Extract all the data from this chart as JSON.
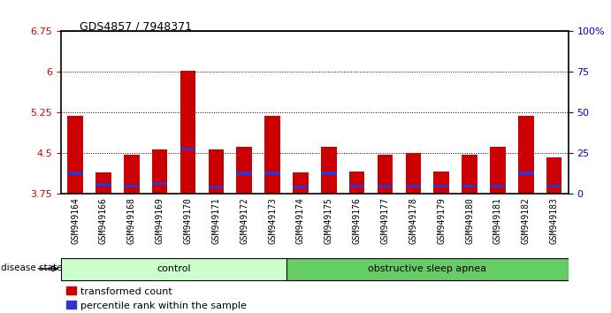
{
  "title": "GDS4857 / 7948371",
  "samples": [
    "GSM949164",
    "GSM949166",
    "GSM949168",
    "GSM949169",
    "GSM949170",
    "GSM949171",
    "GSM949172",
    "GSM949173",
    "GSM949174",
    "GSM949175",
    "GSM949176",
    "GSM949177",
    "GSM949178",
    "GSM949179",
    "GSM949180",
    "GSM949181",
    "GSM949182",
    "GSM949183"
  ],
  "transformed_count": [
    5.2,
    4.15,
    4.47,
    4.58,
    6.02,
    4.58,
    4.62,
    5.2,
    4.15,
    4.62,
    4.17,
    4.47,
    4.5,
    4.17,
    4.47,
    4.62,
    5.2,
    4.42
  ],
  "percentile_rank": [
    4.13,
    3.92,
    3.9,
    3.95,
    4.58,
    3.88,
    4.13,
    4.13,
    3.88,
    4.13,
    3.9,
    3.9,
    3.9,
    3.9,
    3.9,
    3.9,
    4.13,
    3.9
  ],
  "ymin": 3.75,
  "ymax": 6.75,
  "yticks": [
    3.75,
    4.5,
    5.25,
    6.0,
    6.75
  ],
  "ytick_labels": [
    "3.75",
    "4.5",
    "5.25",
    "6",
    "6.75"
  ],
  "right_yticks": [
    0,
    25,
    50,
    75,
    100
  ],
  "right_ytick_labels": [
    "0",
    "25",
    "50",
    "75",
    "100%"
  ],
  "dotted_lines": [
    4.5,
    5.25,
    6.0
  ],
  "bar_color_red": "#cc0000",
  "bar_color_blue": "#3333cc",
  "bar_width": 0.55,
  "control_samples": 8,
  "control_label": "control",
  "disease_label": "obstructive sleep apnea",
  "disease_state_label": "disease state",
  "legend_red_label": "transformed count",
  "legend_blue_label": "percentile rank within the sample",
  "control_color": "#ccffcc",
  "disease_color": "#66cc66",
  "axis_label_color_left": "#cc0000",
  "axis_label_color_right": "#0000cc"
}
